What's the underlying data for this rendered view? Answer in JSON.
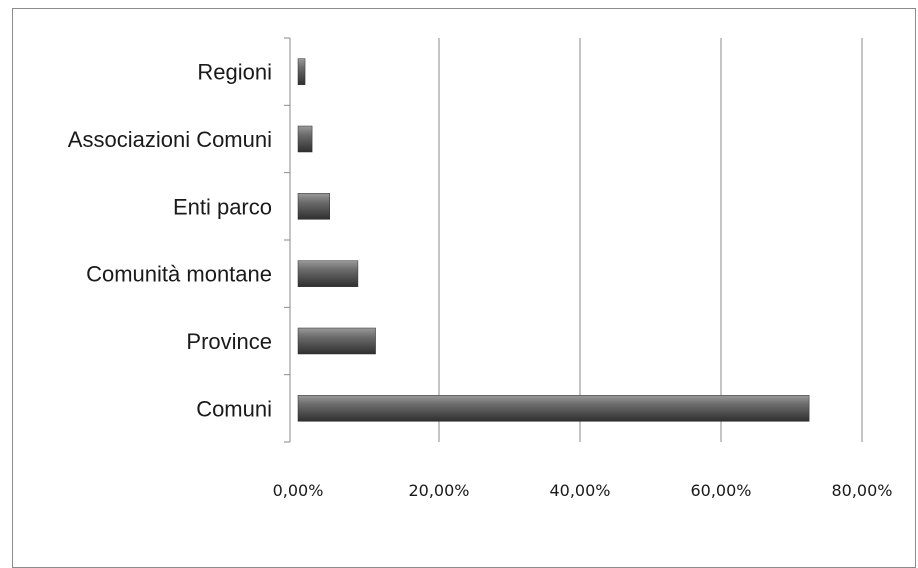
{
  "chart_data": {
    "type": "bar",
    "orientation": "horizontal",
    "categories": [
      "Regioni",
      "Associazioni Comuni",
      "Enti parco",
      "Comunità montane",
      "Province",
      "Comuni"
    ],
    "values": [
      1.0,
      2.0,
      4.5,
      8.5,
      11.0,
      72.5
    ],
    "x_ticks": [
      "0,00%",
      "20,00%",
      "40,00%",
      "60,00%",
      "80,00%"
    ],
    "xlim": [
      0,
      80
    ],
    "grid": "vertical",
    "legend": "none",
    "title": "",
    "xlabel": "",
    "ylabel": "",
    "colors": {
      "bar_dark": "#3a3a3a",
      "bar_mid": "#6b6b6b",
      "bar_light": "#9a9a9a",
      "gridline": "#8a8a8a",
      "axis": "#8a8a8a"
    }
  }
}
